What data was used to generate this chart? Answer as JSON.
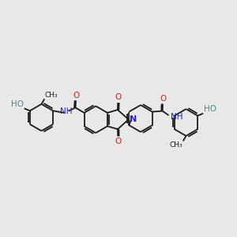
{
  "background_color": "#e8e8e8",
  "bond_color": "#1a1a1a",
  "n_color": "#2222cc",
  "o_color": "#cc2222",
  "ho_color": "#4a8a8a",
  "line_width": 1.3,
  "font_size": 7.5,
  "fig_width": 3.0,
  "fig_height": 3.0,
  "dpi": 100,
  "xlim": [
    -1.0,
    11.0
  ],
  "ylim": [
    2.5,
    7.5
  ]
}
